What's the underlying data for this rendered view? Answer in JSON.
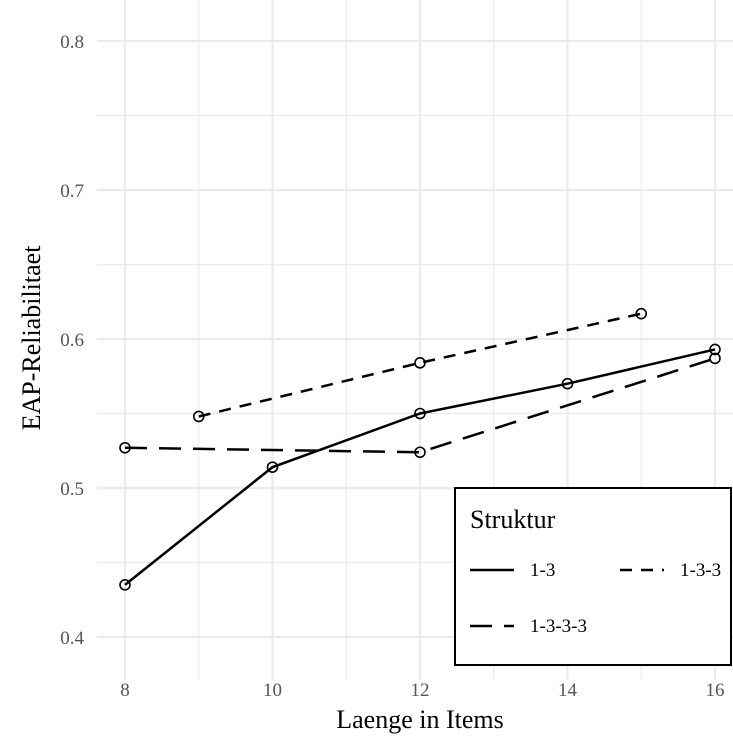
{
  "chart_data": {
    "type": "line",
    "xlabel": "Laenge in Items",
    "ylabel": "EAP-Reliabilitaet",
    "xlim": [
      8,
      16
    ],
    "ylim": [
      0.4,
      0.8
    ],
    "x_ticks": [
      "8",
      "10",
      "12",
      "14",
      "16"
    ],
    "y_ticks": [
      "0.4",
      "0.5",
      "0.6",
      "0.7",
      "0.8"
    ],
    "grid": true,
    "legend": {
      "title": "Struktur",
      "placement": "bottom-right"
    },
    "series": [
      {
        "name": "1-3",
        "line_style": "solid",
        "points": [
          {
            "x": 8,
            "y": 0.435
          },
          {
            "x": 10,
            "y": 0.514
          },
          {
            "x": 12,
            "y": 0.55
          },
          {
            "x": 14,
            "y": 0.57
          },
          {
            "x": 16,
            "y": 0.593
          }
        ]
      },
      {
        "name": "1-3-3",
        "line_style": "short-dash",
        "points": [
          {
            "x": 9,
            "y": 0.548
          },
          {
            "x": 12,
            "y": 0.584
          },
          {
            "x": 15,
            "y": 0.617
          }
        ]
      },
      {
        "name": "1-3-3-3",
        "line_style": "long-dash",
        "points": [
          {
            "x": 8,
            "y": 0.527
          },
          {
            "x": 12,
            "y": 0.524
          },
          {
            "x": 16,
            "y": 0.587
          }
        ]
      }
    ],
    "colors": {
      "line": "#000000",
      "grid": "#ebebeb",
      "tick_text": "#555555"
    }
  }
}
